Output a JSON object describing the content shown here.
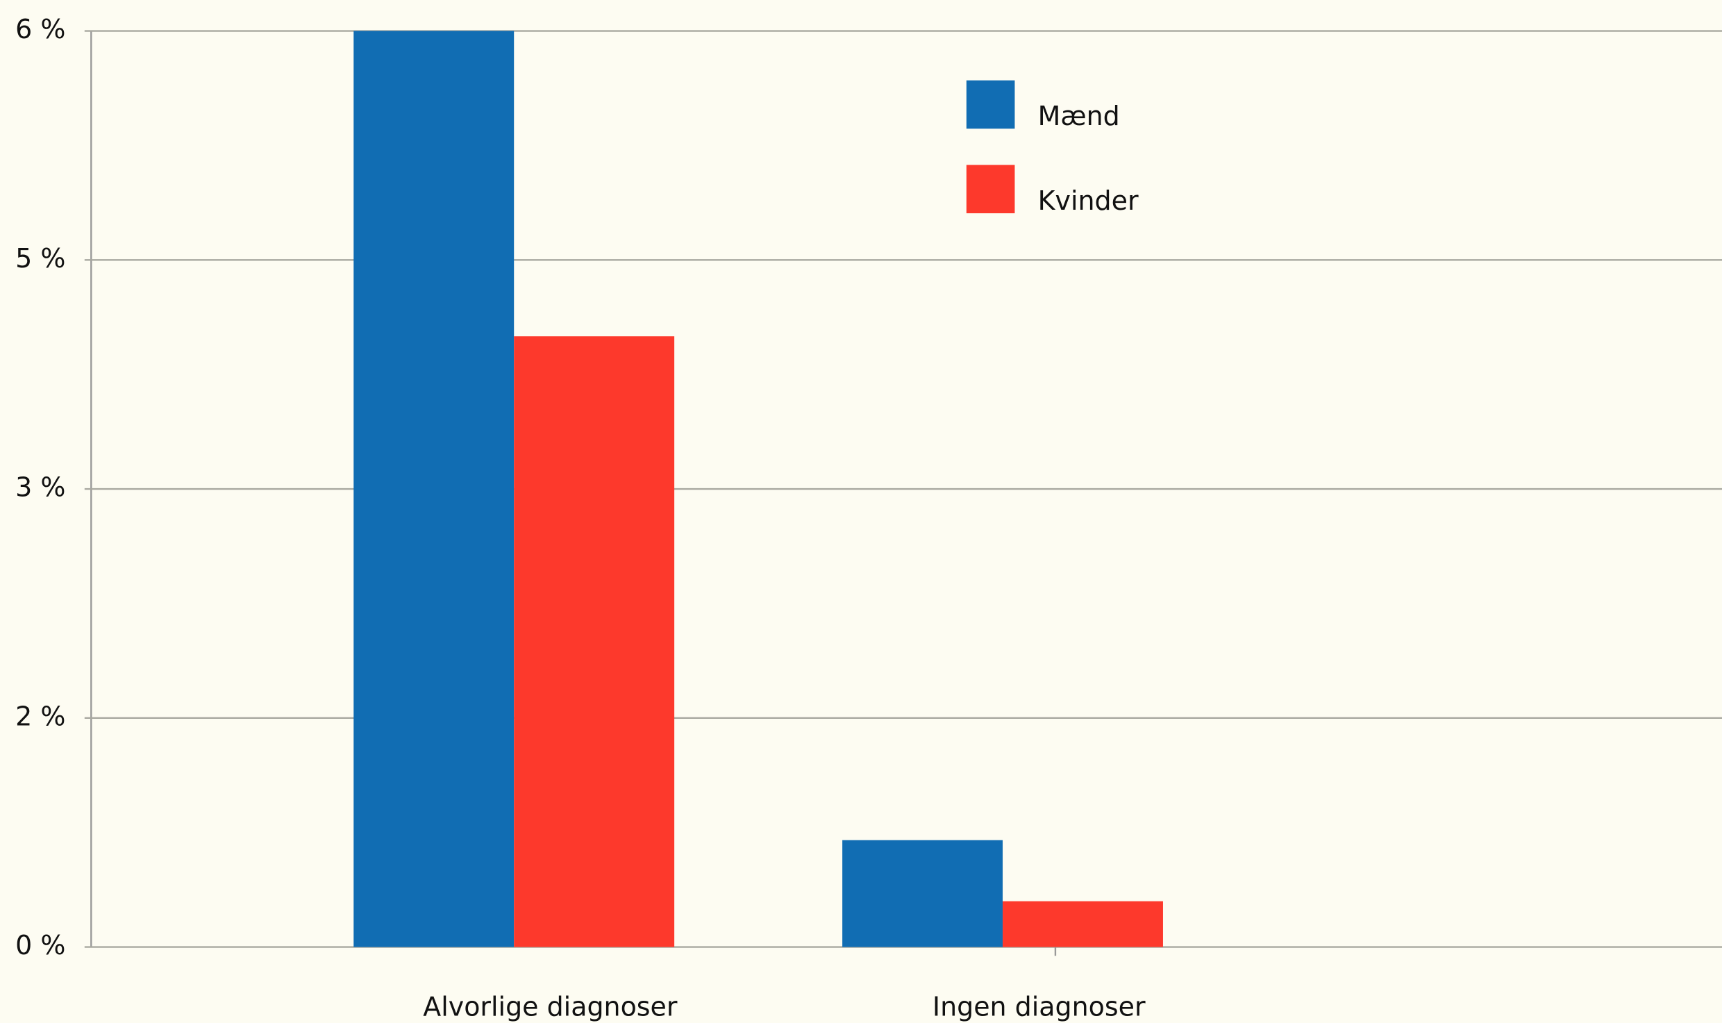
{
  "chart_data": {
    "type": "bar",
    "categories": [
      "Alvorlige diagnoser",
      "Ingen diagnoser"
    ],
    "series": [
      {
        "name": "Mænd",
        "color": "#116db3",
        "values": [
          6.0,
          0.7
        ]
      },
      {
        "name": "Kvinder",
        "color": "#fd392c",
        "values": [
          4.0,
          0.3
        ]
      }
    ],
    "ylim": [
      0,
      6
    ],
    "yticks": [
      {
        "value": 0,
        "label": "0 %"
      },
      {
        "value": 1.5,
        "label": "2 %"
      },
      {
        "value": 3,
        "label": "3 %"
      },
      {
        "value": 4.5,
        "label": "5 %"
      },
      {
        "value": 6,
        "label": "6 %"
      }
    ],
    "grid": true,
    "legend": "top"
  }
}
